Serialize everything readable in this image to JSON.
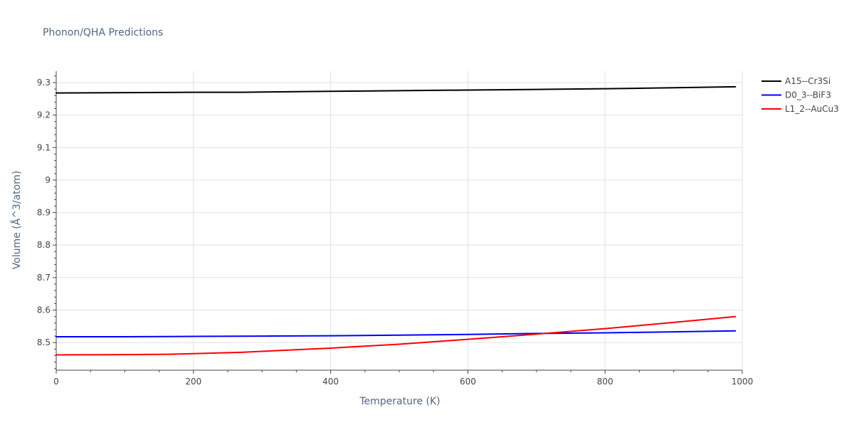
{
  "chart_data": {
    "type": "line",
    "title": "Phonon/QHA Predictions",
    "xlabel": "Temperature (K)",
    "ylabel": "Volume (Å^3/atom)",
    "xlim": [
      0,
      1000
    ],
    "ylim": [
      8.415,
      9.335
    ],
    "xticks": [
      0,
      200,
      400,
      600,
      800,
      1000
    ],
    "xtick_labels": [
      "0",
      "200",
      "400",
      "600",
      "800",
      "1000"
    ],
    "yticks": [
      8.5,
      8.6,
      8.7,
      8.8,
      8.9,
      9.0,
      9.1,
      9.2,
      9.3
    ],
    "ytick_labels": [
      "8.5",
      "8.6",
      "8.7",
      "8.8",
      "8.9",
      "9",
      "9.1",
      "9.2",
      "9.3"
    ],
    "grid": true,
    "legend_position": "top-right, outside plot",
    "series": [
      {
        "name": "A15--Cr3Si",
        "color": "#000000",
        "x": [
          0,
          100,
          200,
          270,
          300,
          400,
          500,
          600,
          700,
          800,
          900,
          990
        ],
        "y": [
          9.268,
          9.269,
          9.27,
          9.27,
          9.271,
          9.273,
          9.275,
          9.277,
          9.279,
          9.281,
          9.284,
          9.287
        ]
      },
      {
        "name": "D0_3--BiF3",
        "color": "#0000ff",
        "x": [
          0,
          100,
          200,
          300,
          400,
          500,
          600,
          700,
          800,
          900,
          990
        ],
        "y": [
          8.518,
          8.518,
          8.519,
          8.52,
          8.521,
          8.523,
          8.525,
          8.528,
          8.53,
          8.533,
          8.536
        ]
      },
      {
        "name": "L1_2--AuCu3",
        "color": "#ff0000",
        "x": [
          0,
          100,
          165,
          200,
          270,
          300,
          400,
          500,
          600,
          700,
          800,
          900,
          990
        ],
        "y": [
          8.462,
          8.463,
          8.464,
          8.466,
          8.47,
          8.473,
          8.483,
          8.495,
          8.51,
          8.526,
          8.543,
          8.562,
          8.58
        ]
      }
    ]
  }
}
